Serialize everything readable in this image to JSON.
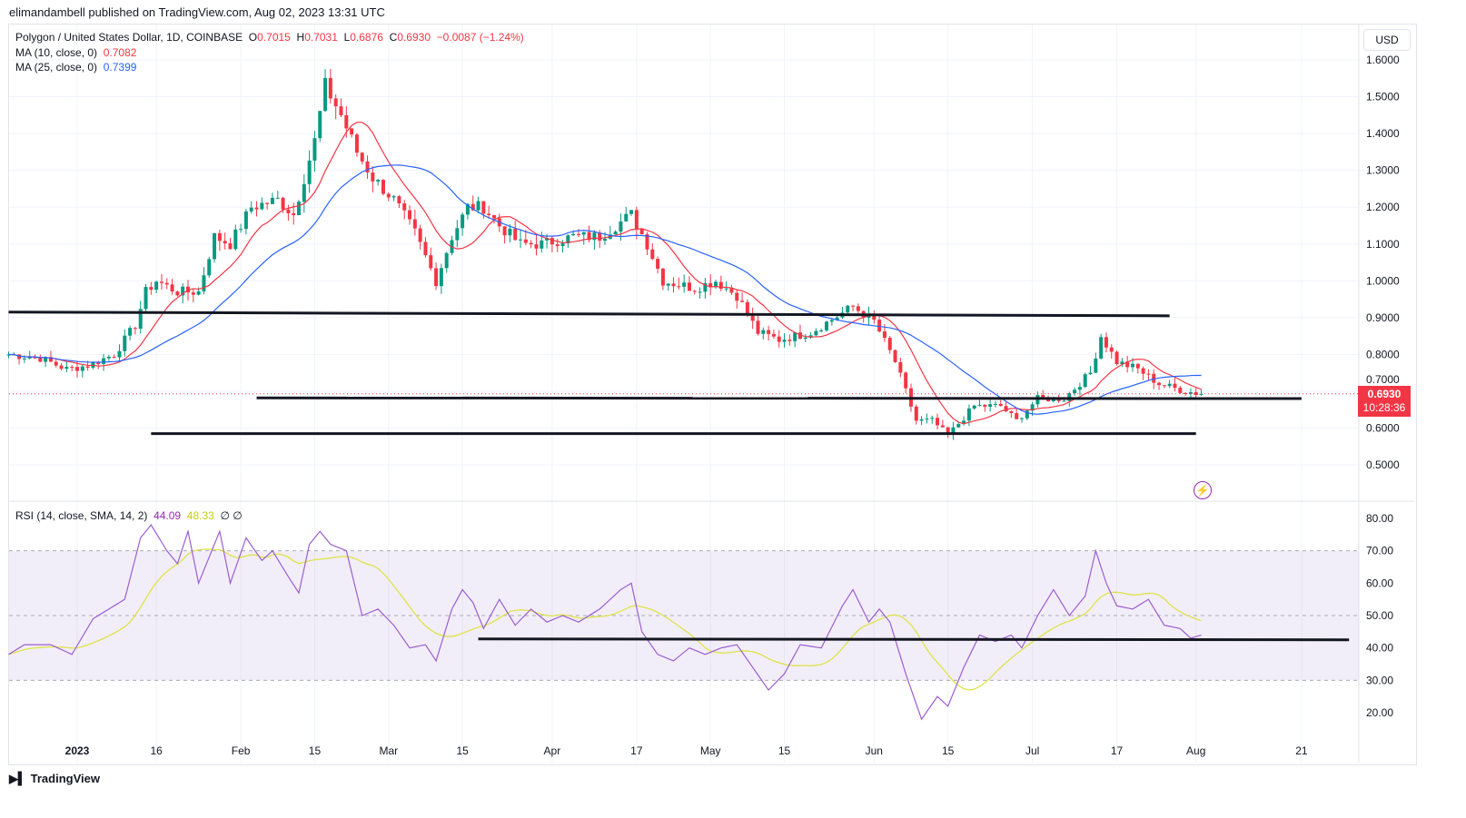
{
  "header": {
    "published": "elimandambell published on TradingView.com, Aug 02, 2023 13:31 UTC",
    "currency": "USD",
    "brand": "TradingView"
  },
  "legend": {
    "symbol": "Polygon / United States Dollar, 1D, COINBASE",
    "o_label": "O",
    "o": "0.7015",
    "h_label": "H",
    "h": "0.7031",
    "l_label": "L",
    "l": "0.6876",
    "c_label": "C",
    "c": "0.6930",
    "change": "−0.0087 (−1.24%)",
    "ma10_label": "MA (10, close, 0)",
    "ma10": "0.7082",
    "ma25_label": "MA (25, close, 0)",
    "ma25": "0.7399",
    "rsi_label": "RSI (14, close, SMA, 14, 2)",
    "rsi": "44.09",
    "rsi_sma": "48.33",
    "rsi_extra": "∅ ∅"
  },
  "price_badge": {
    "price": "0.6930",
    "countdown": "10:28:36"
  },
  "colors": {
    "up": "#089981",
    "down": "#f23645",
    "ma10": "#f23645",
    "ma25": "#2962ff",
    "rsi": "#9c5ed0",
    "rsi_sma": "#dde34a"
  },
  "chart_data": [
    {
      "type": "candlestick",
      "title": "Polygon / United States Dollar, 1D, COINBASE",
      "y_ticks": [
        "1.6000",
        "1.5000",
        "1.4000",
        "1.3000",
        "1.2000",
        "1.1000",
        "1.0000",
        "0.9000",
        "0.8000",
        "0.7000",
        "0.6000",
        "0.5000"
      ],
      "ylim": [
        0.45,
        1.62
      ],
      "x_ticks": [
        "2023",
        "16",
        "Feb",
        "15",
        "Mar",
        "15",
        "Apr",
        "17",
        "May",
        "15",
        "Jun",
        "15",
        "Jul",
        "17",
        "Aug",
        "21"
      ],
      "x_tick_days": [
        13,
        28,
        44,
        58,
        72,
        86,
        103,
        119,
        133,
        147,
        164,
        178,
        194,
        210,
        225,
        245
      ],
      "price_path_day_close": [
        [
          0,
          0.8
        ],
        [
          6,
          0.79
        ],
        [
          11,
          0.76
        ],
        [
          15,
          0.77
        ],
        [
          20,
          0.8
        ],
        [
          24,
          0.88
        ],
        [
          26,
          0.97
        ],
        [
          28,
          1.0
        ],
        [
          32,
          0.97
        ],
        [
          36,
          0.97
        ],
        [
          39,
          1.12
        ],
        [
          42,
          1.1
        ],
        [
          46,
          1.2
        ],
        [
          51,
          1.22
        ],
        [
          54,
          1.18
        ],
        [
          58,
          1.38
        ],
        [
          60,
          1.53
        ],
        [
          63,
          1.45
        ],
        [
          66,
          1.35
        ],
        [
          69,
          1.28
        ],
        [
          73,
          1.22
        ],
        [
          77,
          1.13
        ],
        [
          81,
          1.0
        ],
        [
          84,
          1.12
        ],
        [
          87,
          1.2
        ],
        [
          90,
          1.2
        ],
        [
          93,
          1.15
        ],
        [
          97,
          1.1
        ],
        [
          101,
          1.1
        ],
        [
          107,
          1.12
        ],
        [
          112,
          1.12
        ],
        [
          118,
          1.18
        ],
        [
          121,
          1.1
        ],
        [
          124,
          1.0
        ],
        [
          130,
          0.98
        ],
        [
          134,
          1.0
        ],
        [
          138,
          0.96
        ],
        [
          142,
          0.86
        ],
        [
          146,
          0.84
        ],
        [
          152,
          0.86
        ],
        [
          160,
          0.93
        ],
        [
          164,
          0.89
        ],
        [
          168,
          0.78
        ],
        [
          172,
          0.62
        ],
        [
          175,
          0.62
        ],
        [
          178,
          0.58
        ],
        [
          183,
          0.66
        ],
        [
          188,
          0.66
        ],
        [
          191,
          0.62
        ],
        [
          195,
          0.68
        ],
        [
          200,
          0.68
        ],
        [
          205,
          0.75
        ],
        [
          207,
          0.85
        ],
        [
          210,
          0.78
        ],
        [
          214,
          0.76
        ],
        [
          218,
          0.72
        ],
        [
          223,
          0.7
        ],
        [
          226,
          0.693
        ]
      ],
      "horizontal_lines": [
        [
          0,
          0.915,
          220,
          0.905
        ],
        [
          47,
          0.682,
          245,
          0.68
        ],
        [
          27,
          0.585,
          225,
          0.585
        ]
      ],
      "last_price": 0.693
    },
    {
      "type": "line",
      "title": "RSI (14, close, SMA, 14, 2)",
      "y_ticks": [
        "80.00",
        "70.00",
        "60.00",
        "50.00",
        "40.00",
        "30.00",
        "20.00"
      ],
      "ylim": [
        15,
        82
      ],
      "band": [
        30,
        70
      ],
      "rsi_path": [
        [
          0,
          38
        ],
        [
          3,
          41
        ],
        [
          8,
          41
        ],
        [
          12,
          38
        ],
        [
          16,
          49
        ],
        [
          22,
          55
        ],
        [
          25,
          74
        ],
        [
          27,
          78
        ],
        [
          30,
          70
        ],
        [
          32,
          66
        ],
        [
          34,
          76
        ],
        [
          36,
          60
        ],
        [
          38,
          68
        ],
        [
          40,
          76
        ],
        [
          42,
          60
        ],
        [
          45,
          74
        ],
        [
          48,
          67
        ],
        [
          50,
          70
        ],
        [
          53,
          62
        ],
        [
          55,
          57
        ],
        [
          57,
          72
        ],
        [
          59,
          76
        ],
        [
          61,
          72
        ],
        [
          64,
          70
        ],
        [
          67,
          50
        ],
        [
          70,
          52
        ],
        [
          73,
          47
        ],
        [
          76,
          40
        ],
        [
          79,
          41
        ],
        [
          81,
          36
        ],
        [
          84,
          52
        ],
        [
          86,
          58
        ],
        [
          88,
          54
        ],
        [
          90,
          46
        ],
        [
          93,
          55
        ],
        [
          96,
          47
        ],
        [
          99,
          52
        ],
        [
          102,
          48
        ],
        [
          105,
          50
        ],
        [
          108,
          48
        ],
        [
          112,
          52
        ],
        [
          116,
          58
        ],
        [
          118,
          60
        ],
        [
          120,
          45
        ],
        [
          123,
          38
        ],
        [
          126,
          36
        ],
        [
          129,
          40
        ],
        [
          132,
          38
        ],
        [
          135,
          40
        ],
        [
          138,
          41
        ],
        [
          141,
          34
        ],
        [
          144,
          27
        ],
        [
          147,
          32
        ],
        [
          150,
          41
        ],
        [
          154,
          40
        ],
        [
          158,
          53
        ],
        [
          160,
          58
        ],
        [
          163,
          48
        ],
        [
          165,
          52
        ],
        [
          167,
          48
        ],
        [
          170,
          32
        ],
        [
          173,
          18
        ],
        [
          176,
          25
        ],
        [
          178,
          22
        ],
        [
          181,
          34
        ],
        [
          184,
          44
        ],
        [
          187,
          42
        ],
        [
          190,
          44
        ],
        [
          192,
          40
        ],
        [
          195,
          50
        ],
        [
          198,
          58
        ],
        [
          201,
          50
        ],
        [
          204,
          56
        ],
        [
          206,
          70
        ],
        [
          208,
          60
        ],
        [
          210,
          53
        ],
        [
          213,
          52
        ],
        [
          216,
          55
        ],
        [
          219,
          47
        ],
        [
          222,
          46
        ],
        [
          224,
          43
        ],
        [
          226,
          44
        ]
      ],
      "horizontal_lines": [
        [
          89,
          42.8,
          254,
          42.5
        ]
      ],
      "last_rsi": 44.09,
      "last_sma": 48.33
    }
  ]
}
